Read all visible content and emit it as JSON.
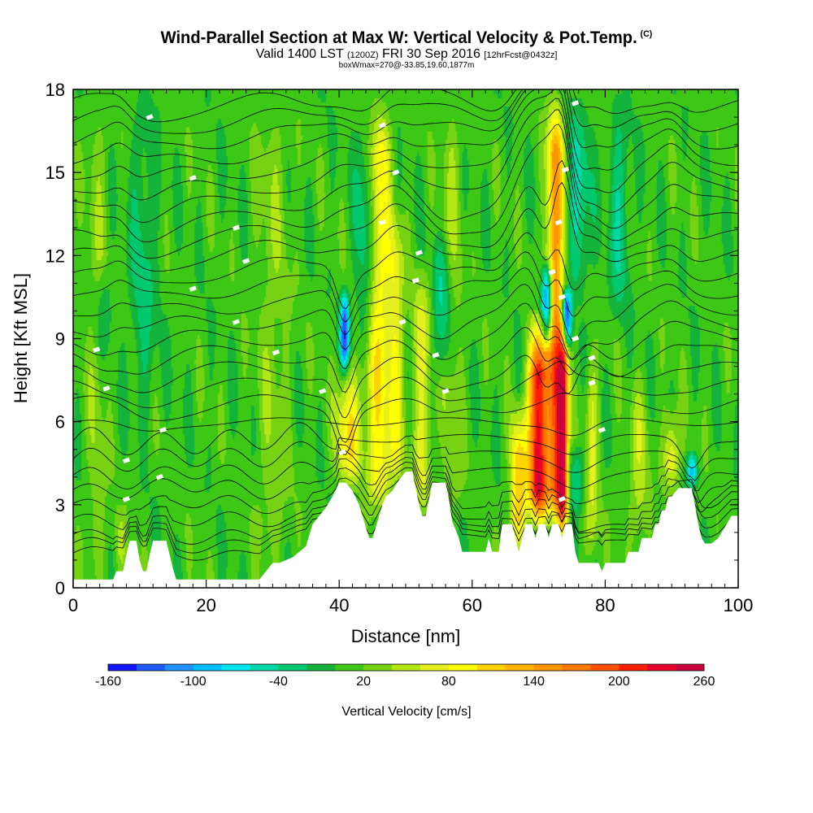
{
  "header": {
    "title": "Wind-Parallel Section at Max W: Vertical Velocity & Pot.Temp.",
    "copyright": "(C)",
    "valid_prefix": "Valid 1400 LST",
    "valid_zulu": "(1200Z)",
    "valid_date": "FRI 30 Sep 2016",
    "forecast": "[12hrFcst@0432z]",
    "box_info": "boxWmax=270@-33.85,19.60,1877m"
  },
  "colors": {
    "palette": [
      "#1414ff",
      "#1f5aff",
      "#1e90ff",
      "#00bfff",
      "#00e5ee",
      "#00d8a8",
      "#00c86e",
      "#14b43c",
      "#3cc814",
      "#78d214",
      "#b4e614",
      "#e6f01e",
      "#ffff00",
      "#ffd200",
      "#ffb400",
      "#ff9600",
      "#ff7800",
      "#ff5000",
      "#ff1e00",
      "#e6002d",
      "#c8003c"
    ]
  },
  "chart_data": {
    "type": "heatmap",
    "xlabel": "Distance [nm]",
    "ylabel": "Height [Kft MSL]",
    "xlim": [
      0,
      100
    ],
    "ylim": [
      0,
      18
    ],
    "x_ticks": [
      "0",
      "20",
      "40",
      "60",
      "80",
      "100"
    ],
    "y_ticks": [
      "0",
      "3",
      "6",
      "9",
      "12",
      "15",
      "18"
    ],
    "colorbar": {
      "label": "Vertical Velocity [cm/s]",
      "levels": [
        -160,
        -140,
        -120,
        -100,
        -80,
        -60,
        -40,
        -20,
        0,
        20,
        40,
        60,
        80,
        100,
        120,
        140,
        160,
        180,
        200,
        220,
        240,
        260
      ],
      "tick_labels": [
        "-160",
        "-100",
        "-40",
        "20",
        "80",
        "140",
        "200",
        "260"
      ]
    },
    "terrain": [
      [
        0,
        0.3
      ],
      [
        6,
        0.3
      ],
      [
        6.5,
        0.6
      ],
      [
        7.5,
        0.6
      ],
      [
        8,
        1.2
      ],
      [
        8.5,
        1.7
      ],
      [
        9.5,
        1.7
      ],
      [
        10,
        1.0
      ],
      [
        10.5,
        0.6
      ],
      [
        11,
        0.6
      ],
      [
        11.5,
        1.2
      ],
      [
        12,
        1.7
      ],
      [
        14,
        1.7
      ],
      [
        14.5,
        1.2
      ],
      [
        15,
        0.7
      ],
      [
        15.5,
        0.3
      ],
      [
        28,
        0.3
      ],
      [
        29,
        0.6
      ],
      [
        30,
        0.9
      ],
      [
        31,
        0.9
      ],
      [
        32,
        1.0
      ],
      [
        33,
        1.1
      ],
      [
        34,
        1.3
      ],
      [
        35,
        1.5
      ],
      [
        35.5,
        1.9
      ],
      [
        36,
        2.3
      ],
      [
        37,
        2.6
      ],
      [
        38,
        2.9
      ],
      [
        39,
        3.3
      ],
      [
        40,
        3.8
      ],
      [
        41,
        3.8
      ],
      [
        42,
        3.5
      ],
      [
        43,
        3.0
      ],
      [
        43.5,
        2.6
      ],
      [
        44,
        2.2
      ],
      [
        44.5,
        1.8
      ],
      [
        45,
        1.8
      ],
      [
        45.5,
        2.2
      ],
      [
        46,
        2.6
      ],
      [
        46.5,
        3.0
      ],
      [
        47,
        3.3
      ],
      [
        48,
        3.5
      ],
      [
        49,
        3.9
      ],
      [
        50,
        4.2
      ],
      [
        51,
        4.2
      ],
      [
        51.5,
        3.6
      ],
      [
        52,
        3.0
      ],
      [
        52.5,
        2.6
      ],
      [
        53,
        2.6
      ],
      [
        53.5,
        3.2
      ],
      [
        54,
        3.8
      ],
      [
        56,
        3.8
      ],
      [
        56.5,
        3.2
      ],
      [
        57,
        2.4
      ],
      [
        58,
        1.8
      ],
      [
        58.5,
        1.3
      ],
      [
        62,
        1.3
      ],
      [
        62.5,
        1.8
      ],
      [
        63,
        1.3
      ],
      [
        64,
        1.3
      ],
      [
        64.5,
        2.3
      ],
      [
        66,
        2.3
      ],
      [
        66.5,
        1.8
      ],
      [
        67,
        1.3
      ],
      [
        67.5,
        1.8
      ],
      [
        68,
        2.3
      ],
      [
        69,
        2.3
      ],
      [
        69.5,
        1.8
      ],
      [
        70,
        2.3
      ],
      [
        71,
        2.3
      ],
      [
        71.5,
        1.8
      ],
      [
        72,
        2.3
      ],
      [
        73,
        2.3
      ],
      [
        73.5,
        1.8
      ],
      [
        74,
        2.3
      ],
      [
        75,
        2.3
      ],
      [
        75.5,
        1.3
      ],
      [
        76,
        0.9
      ],
      [
        79,
        0.9
      ],
      [
        79.5,
        0.6
      ],
      [
        80,
        0.9
      ],
      [
        83,
        0.9
      ],
      [
        83.5,
        1.3
      ],
      [
        85,
        1.3
      ],
      [
        85.5,
        1.8
      ],
      [
        87,
        1.8
      ],
      [
        87.5,
        2.3
      ],
      [
        88,
        2.3
      ],
      [
        88.5,
        2.8
      ],
      [
        89,
        2.8
      ],
      [
        89.5,
        3.3
      ],
      [
        90,
        3.3
      ],
      [
        91,
        3.6
      ],
      [
        93,
        3.6
      ],
      [
        93.5,
        3.0
      ],
      [
        94,
        2.3
      ],
      [
        94.5,
        1.8
      ],
      [
        95,
        1.6
      ],
      [
        96,
        1.6
      ],
      [
        97,
        1.8
      ],
      [
        98,
        2.2
      ],
      [
        99,
        2.6
      ],
      [
        100,
        2.6
      ]
    ],
    "updraft_plumes": [
      {
        "x": 41.5,
        "w": 2.0,
        "top": 8.5,
        "amp": 90
      },
      {
        "x": 46.0,
        "w": 1.8,
        "top": 18,
        "amp": 85
      },
      {
        "x": 48.5,
        "w": 1.2,
        "top": 14,
        "amp": 60
      },
      {
        "x": 52.5,
        "w": 1.5,
        "top": 12,
        "amp": 55
      },
      {
        "x": 67.0,
        "w": 1.2,
        "top": 7,
        "amp": 110
      },
      {
        "x": 70.0,
        "w": 1.4,
        "top": 10,
        "amp": 230
      },
      {
        "x": 72.5,
        "w": 1.2,
        "top": 18,
        "amp": 150
      },
      {
        "x": 73.6,
        "w": 0.8,
        "top": 10,
        "amp": 220
      },
      {
        "x": 78.0,
        "w": 1.0,
        "top": 9,
        "amp": 50
      },
      {
        "x": 85.0,
        "w": 1.5,
        "top": 8,
        "amp": 40
      },
      {
        "x": 90.0,
        "w": 1.2,
        "top": 7,
        "amp": 80
      },
      {
        "x": 7.0,
        "w": 1.0,
        "top": 3,
        "amp": 60
      },
      {
        "x": 3.5,
        "w": 1.5,
        "top": 18,
        "amp": 25
      },
      {
        "x": 30.0,
        "w": 2.5,
        "top": 18,
        "amp": 25
      },
      {
        "x": 57.0,
        "w": 1.5,
        "top": 18,
        "amp": 30
      }
    ],
    "downdraft_plumes": [
      {
        "x": 40.8,
        "w": 0.7,
        "top": 11,
        "bottom": 7.5,
        "amp": 140
      },
      {
        "x": 44.0,
        "w": 1.5,
        "top": 18,
        "bottom": 8,
        "amp": 55
      },
      {
        "x": 55.5,
        "w": 1.5,
        "top": 13,
        "bottom": 7,
        "amp": 55
      },
      {
        "x": 71.2,
        "w": 0.8,
        "top": 12,
        "bottom": 8.5,
        "amp": 150
      },
      {
        "x": 74.2,
        "w": 0.7,
        "top": 11,
        "bottom": 8.5,
        "amp": 160
      },
      {
        "x": 76.0,
        "w": 1.8,
        "top": 18,
        "bottom": 10,
        "amp": 55
      },
      {
        "x": 75.5,
        "w": 1.5,
        "top": 5.5,
        "bottom": 2.5,
        "amp": 45
      },
      {
        "x": 82.0,
        "w": 1.5,
        "top": 18,
        "bottom": 9,
        "amp": 45
      },
      {
        "x": 93.0,
        "w": 0.8,
        "top": 5,
        "bottom": 3.5,
        "amp": 90
      },
      {
        "x": 10.5,
        "w": 2.0,
        "top": 18,
        "bottom": 5,
        "amp": 35
      },
      {
        "x": 4.5,
        "w": 1.5,
        "top": 12,
        "bottom": 8,
        "amp": 30
      }
    ],
    "isentropes": {
      "levels_kft": [
        0.6,
        1.2,
        1.8,
        2.4,
        3.0,
        3.6,
        4.2,
        4.8,
        5.4,
        6.0,
        6.6,
        7.2,
        7.8,
        8.4,
        9.0,
        9.6,
        10.2,
        10.8,
        11.4,
        12.0,
        12.6,
        13.2,
        13.8,
        14.4,
        15.0,
        15.6,
        16.2,
        16.8,
        17.4
      ],
      "labeled_points": [
        {
          "x": 11.5,
          "y": 17.0
        },
        {
          "x": 18,
          "y": 14.8
        },
        {
          "x": 24.5,
          "y": 13.0
        },
        {
          "x": 26,
          "y": 11.8
        },
        {
          "x": 18,
          "y": 10.8
        },
        {
          "x": 24.5,
          "y": 9.6
        },
        {
          "x": 3.5,
          "y": 8.6
        },
        {
          "x": 30.5,
          "y": 8.5
        },
        {
          "x": 5,
          "y": 7.2
        },
        {
          "x": 37.5,
          "y": 7.1
        },
        {
          "x": 13.5,
          "y": 5.7
        },
        {
          "x": 8,
          "y": 4.6
        },
        {
          "x": 13,
          "y": 4.0
        },
        {
          "x": 8,
          "y": 3.2
        },
        {
          "x": 40.5,
          "y": 4.9
        },
        {
          "x": 46.5,
          "y": 16.7
        },
        {
          "x": 48.5,
          "y": 15.0
        },
        {
          "x": 46.5,
          "y": 13.2
        },
        {
          "x": 52,
          "y": 12.1
        },
        {
          "x": 51.5,
          "y": 11.1
        },
        {
          "x": 49.5,
          "y": 9.6
        },
        {
          "x": 54.5,
          "y": 8.4
        },
        {
          "x": 56,
          "y": 7.1
        },
        {
          "x": 75.5,
          "y": 17.5
        },
        {
          "x": 74,
          "y": 15.1
        },
        {
          "x": 73,
          "y": 13.2
        },
        {
          "x": 72,
          "y": 11.4
        },
        {
          "x": 73.5,
          "y": 10.5
        },
        {
          "x": 75.5,
          "y": 9.0
        },
        {
          "x": 78,
          "y": 8.3
        },
        {
          "x": 78,
          "y": 7.4
        },
        {
          "x": 79.5,
          "y": 5.7
        },
        {
          "x": 73.5,
          "y": 3.2
        }
      ]
    }
  }
}
